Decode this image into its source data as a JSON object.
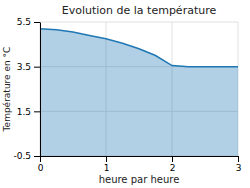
{
  "chart_data": {
    "type": "area",
    "title": "Evolution de la température",
    "xlabel": "heure par heure",
    "ylabel": "Température en °C",
    "x": [
      0,
      0.25,
      0.5,
      0.75,
      1.0,
      1.25,
      1.5,
      1.75,
      2.0,
      2.25,
      2.5,
      2.75,
      3.0
    ],
    "values": [
      5.2,
      5.15,
      5.05,
      4.9,
      4.75,
      4.55,
      4.3,
      4.0,
      3.55,
      3.5,
      3.5,
      3.5,
      3.5
    ],
    "xlim": [
      0,
      3
    ],
    "ylim": [
      -0.5,
      5.5
    ],
    "xticks": [
      0,
      1,
      2,
      3
    ],
    "yticks": [
      -0.5,
      1.5,
      3.5,
      5.5
    ],
    "grid": true
  }
}
